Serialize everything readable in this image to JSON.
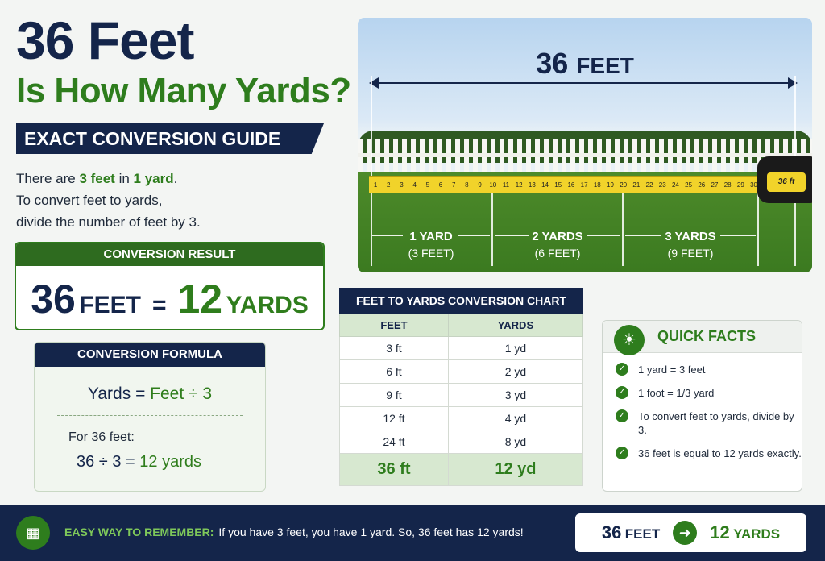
{
  "title": {
    "line1": "36 Feet",
    "line2": "Is How Many Yards?",
    "banner": "EXACT CONVERSION GUIDE"
  },
  "intro": {
    "part1": "There are ",
    "feet": "3 feet",
    "mid": " in ",
    "yard": "1 yard",
    "end": ".",
    "line2": "To convert feet to yards,",
    "line3": "divide the number of feet by 3."
  },
  "result": {
    "header": "CONVERSION RESULT",
    "feet_value": "36",
    "feet_unit": "FEET",
    "equals": "=",
    "yards_value": "12",
    "yards_unit": "YARDS"
  },
  "formula": {
    "header": "CONVERSION FORMULA",
    "lhs": "Yards",
    "eq": "=",
    "rhs": "Feet ÷ 3",
    "for_label": "For 36 feet:",
    "calc_lhs": "36 ÷ 3",
    "calc_eq": "=",
    "calc_rhs": "12 yards"
  },
  "photo": {
    "title_num": "36",
    "title_unit": "FEET",
    "tape_marks": [
      "1",
      "2",
      "3",
      "4",
      "5",
      "6",
      "7",
      "8",
      "9",
      "10",
      "11",
      "12",
      "13",
      "14",
      "15",
      "16",
      "17",
      "18",
      "19",
      "20",
      "21",
      "22",
      "23",
      "24",
      "25",
      "26",
      "27",
      "28",
      "29",
      "30"
    ],
    "case_label": "36 ft",
    "segments": [
      {
        "label": "1 YARD",
        "sub": "(3 FEET)"
      },
      {
        "label": "2 YARDS",
        "sub": "(6 FEET)"
      },
      {
        "label": "3 YARDS",
        "sub": "(9 FEET)"
      }
    ]
  },
  "chart": {
    "header": "FEET TO YARDS CONVERSION CHART",
    "col_feet": "FEET",
    "col_yards": "YARDS",
    "rows": [
      {
        "feet": "3 ft",
        "yards": "1 yd"
      },
      {
        "feet": "6 ft",
        "yards": "2 yd"
      },
      {
        "feet": "9 ft",
        "yards": "3 yd"
      },
      {
        "feet": "12 ft",
        "yards": "4 yd"
      },
      {
        "feet": "24 ft",
        "yards": "8 yd"
      }
    ],
    "highlight": {
      "feet": "36 ft",
      "yards": "12 yd"
    }
  },
  "facts": {
    "title": "QUICK FACTS",
    "items": [
      "1 yard = 3 feet",
      "1 foot = 1/3 yard",
      "To convert feet to yards, divide by 3.",
      "36 feet is equal to 12 yards exactly."
    ]
  },
  "footer": {
    "label": "EASY WAY TO REMEMBER:",
    "text": "If you have 3 feet, you have 1 yard. So, 36 feet has 12 yards!",
    "box_feet_num": "36",
    "box_feet_unit": "FEET",
    "box_yards_num": "12",
    "box_yards_unit": "YARDS"
  },
  "icons": {
    "bulb": "lightbulb-icon",
    "check": "check-icon",
    "calculator": "calculator-icon",
    "arrow": "arrow-right-icon"
  },
  "colors": {
    "navy": "#14254a",
    "green": "#2e7d1d"
  }
}
